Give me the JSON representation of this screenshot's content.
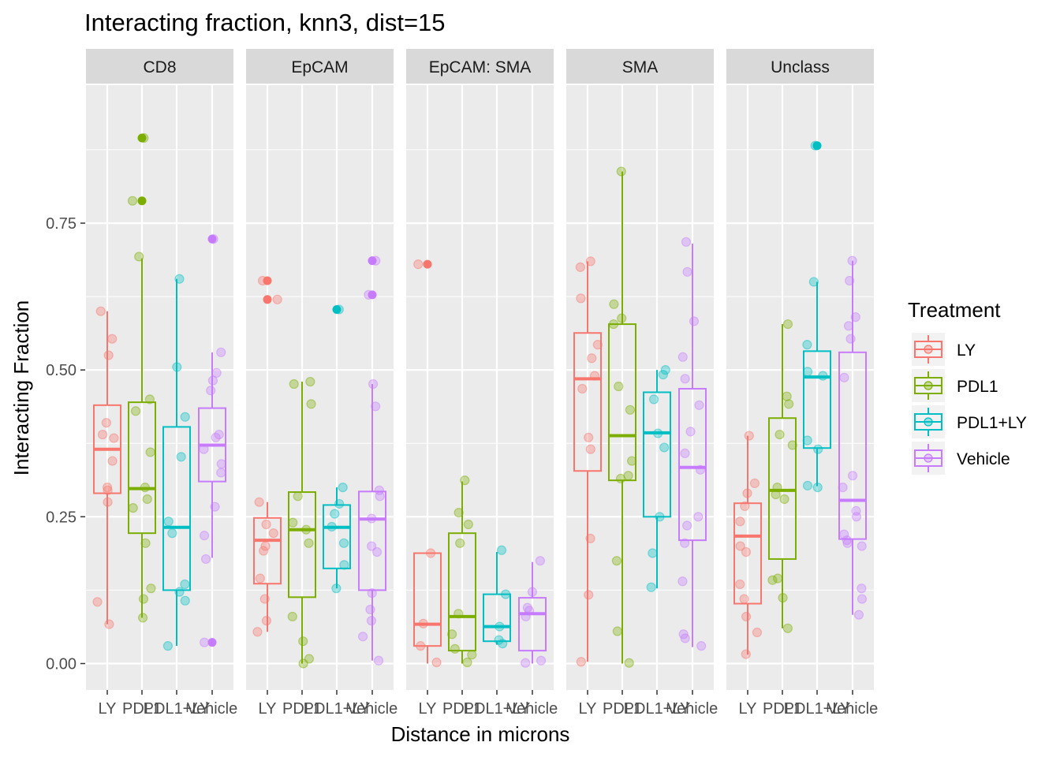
{
  "chart_data": {
    "type": "boxplot",
    "title": "Interacting fraction, knn3, dist=15",
    "xlabel": "Distance in microns",
    "ylabel": "Interacting Fraction",
    "ylim": [
      -0.045,
      0.985
    ],
    "y_ticks": [
      0.0,
      0.25,
      0.5,
      0.75
    ],
    "y_tick_labels": [
      "0.00",
      "0.25",
      "0.50",
      "0.75"
    ],
    "categories": [
      "LY",
      "PDL1",
      "PDL1+LY",
      "Vehicle"
    ],
    "facet_variable": "cell type",
    "legend": {
      "title": "Treatment",
      "position": "right",
      "entries": [
        "LY",
        "PDL1",
        "PDL1+LY",
        "Vehicle"
      ]
    },
    "colors": {
      "LY": "#F8766D",
      "PDL1": "#7CAE00",
      "PDL1+LY": "#00BFC4",
      "Vehicle": "#C77CFF",
      "panel_bg": "#EBEBEB",
      "strip_bg": "#D9D9D9",
      "grid": "#FFFFFF"
    },
    "facets": [
      {
        "label": "CD8",
        "boxes": [
          {
            "treatment": "LY",
            "q1": 0.29,
            "median": 0.365,
            "q3": 0.44,
            "whisker_low": 0.067,
            "whisker_high": 0.6,
            "outliers": [],
            "points": [
              0.6,
              0.553,
              0.525,
              0.41,
              0.39,
              0.384,
              0.345,
              0.3,
              0.295,
              0.275,
              0.105,
              0.067
            ]
          },
          {
            "treatment": "PDL1",
            "q1": 0.222,
            "median": 0.298,
            "q3": 0.445,
            "whisker_low": 0.078,
            "whisker_high": 0.69,
            "outliers": [
              0.895,
              0.788
            ],
            "points": [
              0.895,
              0.788,
              0.693,
              0.45,
              0.43,
              0.36,
              0.3,
              0.28,
              0.265,
              0.205,
              0.128,
              0.11,
              0.078
            ]
          },
          {
            "treatment": "PDL1+LY",
            "q1": 0.125,
            "median": 0.232,
            "q3": 0.403,
            "whisker_low": 0.03,
            "whisker_high": 0.655,
            "outliers": [],
            "points": [
              0.655,
              0.505,
              0.42,
              0.352,
              0.242,
              0.222,
              0.135,
              0.122,
              0.107,
              0.03
            ]
          },
          {
            "treatment": "Vehicle",
            "q1": 0.31,
            "median": 0.372,
            "q3": 0.435,
            "whisker_low": 0.18,
            "whisker_high": 0.53,
            "outliers": [
              0.723,
              0.036
            ],
            "points": [
              0.723,
              0.53,
              0.495,
              0.482,
              0.465,
              0.39,
              0.385,
              0.365,
              0.34,
              0.325,
              0.267,
              0.218,
              0.178,
              0.036
            ]
          }
        ]
      },
      {
        "label": "EpCAM",
        "boxes": [
          {
            "treatment": "LY",
            "q1": 0.136,
            "median": 0.21,
            "q3": 0.248,
            "whisker_low": 0.054,
            "whisker_high": 0.275,
            "outliers": [
              0.652,
              0.62
            ],
            "points": [
              0.652,
              0.62,
              0.275,
              0.237,
              0.222,
              0.2,
              0.192,
              0.145,
              0.11,
              0.073,
              0.054
            ]
          },
          {
            "treatment": "PDL1",
            "q1": 0.113,
            "median": 0.228,
            "q3": 0.292,
            "whisker_low": 0.0,
            "whisker_high": 0.48,
            "outliers": [],
            "points": [
              0.48,
              0.476,
              0.442,
              0.285,
              0.24,
              0.228,
              0.205,
              0.08,
              0.038,
              0.008,
              0.0
            ]
          },
          {
            "treatment": "PDL1+LY",
            "q1": 0.162,
            "median": 0.232,
            "q3": 0.27,
            "whisker_low": 0.128,
            "whisker_high": 0.3,
            "outliers": [
              0.603
            ],
            "points": [
              0.603,
              0.3,
              0.272,
              0.255,
              0.233,
              0.205,
              0.168,
              0.128
            ]
          },
          {
            "treatment": "Vehicle",
            "q1": 0.125,
            "median": 0.246,
            "q3": 0.293,
            "whisker_low": 0.005,
            "whisker_high": 0.476,
            "outliers": [
              0.686,
              0.628
            ],
            "points": [
              0.686,
              0.628,
              0.476,
              0.438,
              0.295,
              0.285,
              0.247,
              0.2,
              0.19,
              0.12,
              0.092,
              0.073,
              0.046,
              0.005
            ]
          }
        ]
      },
      {
        "label": "EpCAM: SMA",
        "boxes": [
          {
            "treatment": "LY",
            "q1": 0.03,
            "median": 0.067,
            "q3": 0.188,
            "whisker_low": 0.0,
            "whisker_high": 0.188,
            "outliers": [
              0.68
            ],
            "points": [
              0.68,
              0.188,
              0.068,
              0.03,
              0.002
            ]
          },
          {
            "treatment": "PDL1",
            "q1": 0.022,
            "median": 0.08,
            "q3": 0.222,
            "whisker_low": 0.0,
            "whisker_high": 0.31,
            "outliers": [],
            "points": [
              0.312,
              0.257,
              0.237,
              0.205,
              0.085,
              0.05,
              0.025,
              0.015,
              0.002
            ]
          },
          {
            "treatment": "PDL1+LY",
            "q1": 0.038,
            "median": 0.063,
            "q3": 0.118,
            "whisker_low": 0.032,
            "whisker_high": 0.19,
            "outliers": [],
            "points": [
              0.193,
              0.118,
              0.063,
              0.04,
              0.034
            ]
          },
          {
            "treatment": "Vehicle",
            "q1": 0.022,
            "median": 0.085,
            "q3": 0.112,
            "whisker_low": 0.0,
            "whisker_high": 0.173,
            "outliers": [],
            "points": [
              0.175,
              0.122,
              0.095,
              0.09,
              0.08,
              0.005,
              0.001
            ]
          }
        ]
      },
      {
        "label": "SMA",
        "boxes": [
          {
            "treatment": "LY",
            "q1": 0.328,
            "median": 0.485,
            "q3": 0.563,
            "whisker_low": 0.003,
            "whisker_high": 0.685,
            "outliers": [],
            "points": [
              0.685,
              0.675,
              0.622,
              0.543,
              0.52,
              0.49,
              0.468,
              0.385,
              0.365,
              0.213,
              0.117,
              0.003
            ]
          },
          {
            "treatment": "PDL1",
            "q1": 0.312,
            "median": 0.388,
            "q3": 0.578,
            "whisker_low": 0.0,
            "whisker_high": 0.838,
            "outliers": [],
            "points": [
              0.838,
              0.612,
              0.588,
              0.578,
              0.472,
              0.432,
              0.345,
              0.32,
              0.315,
              0.175,
              0.055,
              0.001
            ]
          },
          {
            "treatment": "PDL1+LY",
            "q1": 0.25,
            "median": 0.393,
            "q3": 0.462,
            "whisker_low": 0.128,
            "whisker_high": 0.5,
            "outliers": [],
            "points": [
              0.5,
              0.492,
              0.45,
              0.392,
              0.368,
              0.25,
              0.188,
              0.13
            ]
          },
          {
            "treatment": "Vehicle",
            "q1": 0.21,
            "median": 0.334,
            "q3": 0.468,
            "whisker_low": 0.028,
            "whisker_high": 0.715,
            "outliers": [],
            "points": [
              0.718,
              0.667,
              0.583,
              0.522,
              0.485,
              0.44,
              0.395,
              0.358,
              0.33,
              0.25,
              0.235,
              0.205,
              0.14,
              0.05,
              0.043,
              0.03
            ]
          }
        ]
      },
      {
        "label": "Unclass",
        "boxes": [
          {
            "treatment": "LY",
            "q1": 0.102,
            "median": 0.217,
            "q3": 0.273,
            "whisker_low": 0.015,
            "whisker_high": 0.388,
            "outliers": [],
            "points": [
              0.388,
              0.307,
              0.29,
              0.268,
              0.242,
              0.2,
              0.19,
              0.135,
              0.11,
              0.08,
              0.053,
              0.016
            ]
          },
          {
            "treatment": "PDL1",
            "q1": 0.178,
            "median": 0.295,
            "q3": 0.418,
            "whisker_low": 0.06,
            "whisker_high": 0.578,
            "outliers": [],
            "points": [
              0.578,
              0.455,
              0.442,
              0.39,
              0.372,
              0.3,
              0.288,
              0.28,
              0.145,
              0.142,
              0.112,
              0.06
            ]
          },
          {
            "treatment": "PDL1+LY",
            "q1": 0.367,
            "median": 0.488,
            "q3": 0.532,
            "whisker_low": 0.302,
            "whisker_high": 0.65,
            "outliers": [
              0.882
            ],
            "points": [
              0.882,
              0.65,
              0.543,
              0.497,
              0.49,
              0.38,
              0.365,
              0.303,
              0.3
            ]
          },
          {
            "treatment": "Vehicle",
            "q1": 0.212,
            "median": 0.278,
            "q3": 0.53,
            "whisker_low": 0.083,
            "whisker_high": 0.686,
            "outliers": [],
            "points": [
              0.686,
              0.652,
              0.59,
              0.575,
              0.553,
              0.487,
              0.32,
              0.3,
              0.26,
              0.25,
              0.22,
              0.21,
              0.205,
              0.2,
              0.128,
              0.11,
              0.083
            ]
          }
        ]
      }
    ]
  }
}
